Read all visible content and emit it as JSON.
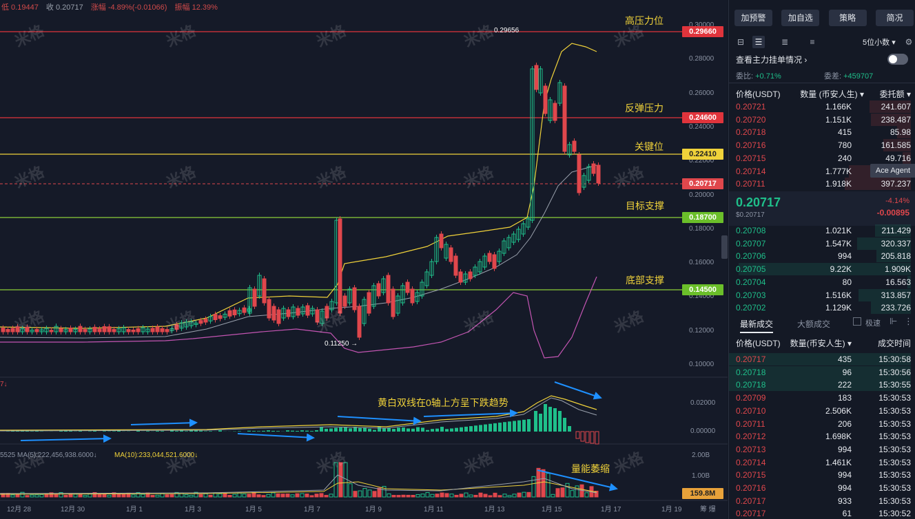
{
  "topbar": {
    "low": "低 0.19447",
    "close": "收 0.20717",
    "change": "涨幅 -4.89%(-0.01066)",
    "amplitude": "振幅 12.39%"
  },
  "price_axis": [
    "0.30000",
    "0.28000",
    "0.26000",
    "0.24000",
    "0.22000",
    "0.20000",
    "0.18000",
    "0.16000",
    "0.14000",
    "0.12000",
    "0.10000"
  ],
  "macd_axis": [
    "0.02000",
    "0.00000"
  ],
  "vol_axis": [
    "2.00B",
    "1.00B"
  ],
  "date_ticks": [
    "12月 28",
    "12月 30",
    "1月 1",
    "1月 3",
    "1月 5",
    "1月 7",
    "1月 9",
    "1月 11",
    "1月 13",
    "1月 15",
    "1月 17",
    "1月 19"
  ],
  "date_tail": "筹  爆",
  "level_tags": {
    "high_pressure": "0.29660",
    "rebound_pressure": "0.24600",
    "key_level": "0.22410",
    "current": "0.20717",
    "target_support": "0.18700",
    "bottom_support": "0.14500",
    "volume": "159.8M"
  },
  "annotations": {
    "high_pressure": "高压力位",
    "rebound_pressure": "反弹压力",
    "key_level": "关键位",
    "target_support": "目标支撑",
    "bottom_support": "底部支撑",
    "macd_note": "黄白双线在0轴上方呈下跌趋势",
    "volume_note": "量能萎缩"
  },
  "marks": {
    "high": "0.29656",
    "low": "0.11250 →"
  },
  "indicators": {
    "macd_prefix": "7↓",
    "vol_prefix": "5525  MA(5):222,456,938.6000↓",
    "vol_ma10": "MA(10):233,044,521.6000↓"
  },
  "watermark": "米格",
  "colors": {
    "up": "#1fbf8a",
    "down": "#e0474c",
    "yellow": "#f0d23a",
    "red_line": "#e0343c",
    "green_line": "#8ecf38"
  },
  "panel": {
    "buttons": [
      "加预警",
      "加自选",
      "策略",
      "简况"
    ],
    "decimals": "5位小数",
    "view_main_orders": "查看主力挂单情况",
    "ratio_label": "委比:",
    "ratio_value": "+0.71%",
    "diff_label": "委差:",
    "diff_value": "+459707",
    "book_headers": [
      "价格(USDT)",
      "数量 (币安人生)",
      "委托额"
    ],
    "asks": [
      {
        "price": "0.20721",
        "qty": "1.166K",
        "amt": "241.607"
      },
      {
        "price": "0.20720",
        "qty": "1.151K",
        "amt": "238.487"
      },
      {
        "price": "0.20718",
        "qty": "415",
        "amt": "85.98"
      },
      {
        "price": "0.20716",
        "qty": "780",
        "amt": "161.585"
      },
      {
        "price": "0.20715",
        "qty": "240",
        "amt": "49.716"
      },
      {
        "price": "0.20714",
        "qty": "1.777K",
        "amt": ""
      },
      {
        "price": "0.20711",
        "qty": "1.918K",
        "amt": "397.237"
      }
    ],
    "last_price": "0.20717",
    "last_price_sub": "$0.20717",
    "change_pct": "-4.14%",
    "change_abs": "-0.00895",
    "bids": [
      {
        "price": "0.20708",
        "qty": "1.021K",
        "amt": "211.429"
      },
      {
        "price": "0.20707",
        "qty": "1.547K",
        "amt": "320.337"
      },
      {
        "price": "0.20706",
        "qty": "994",
        "amt": "205.818"
      },
      {
        "price": "0.20705",
        "qty": "9.22K",
        "amt": "1.909K"
      },
      {
        "price": "0.20704",
        "qty": "80",
        "amt": "16.563"
      },
      {
        "price": "0.20703",
        "qty": "1.516K",
        "amt": "313.857"
      },
      {
        "price": "0.20702",
        "qty": "1.129K",
        "amt": "233.726"
      }
    ],
    "tooltip": "Ace Agent",
    "trade_tabs": [
      "最新成交",
      "大额成交"
    ],
    "fast_trade": "极速",
    "trade_headers": [
      "价格(USDT)",
      "数量(币安人生)",
      "成交时间"
    ],
    "trades": [
      {
        "price": "0.20717",
        "side": "down",
        "qty": "435",
        "time": "15:30:58"
      },
      {
        "price": "0.20718",
        "side": "up",
        "qty": "96",
        "time": "15:30:56"
      },
      {
        "price": "0.20718",
        "side": "up",
        "qty": "222",
        "time": "15:30:55"
      },
      {
        "price": "0.20709",
        "side": "down",
        "qty": "183",
        "time": "15:30:53"
      },
      {
        "price": "0.20710",
        "side": "down",
        "qty": "2.506K",
        "time": "15:30:53"
      },
      {
        "price": "0.20711",
        "side": "down",
        "qty": "206",
        "time": "15:30:53"
      },
      {
        "price": "0.20712",
        "side": "down",
        "qty": "1.698K",
        "time": "15:30:53"
      },
      {
        "price": "0.20713",
        "side": "down",
        "qty": "994",
        "time": "15:30:53"
      },
      {
        "price": "0.20714",
        "side": "down",
        "qty": "1.461K",
        "time": "15:30:53"
      },
      {
        "price": "0.20715",
        "side": "down",
        "qty": "994",
        "time": "15:30:53"
      },
      {
        "price": "0.20716",
        "side": "down",
        "qty": "994",
        "time": "15:30:53"
      },
      {
        "price": "0.20717",
        "side": "down",
        "qty": "933",
        "time": "15:30:53"
      },
      {
        "price": "0.20717",
        "side": "down",
        "qty": "61",
        "time": "15:30:52"
      }
    ]
  }
}
